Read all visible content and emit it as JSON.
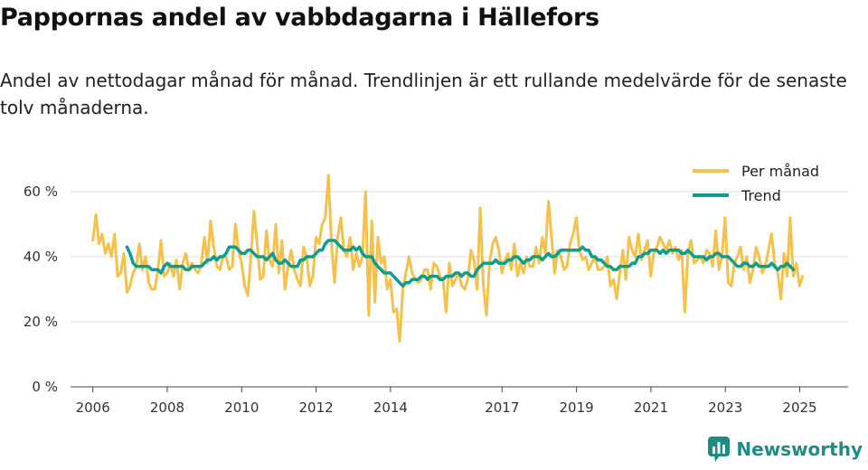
{
  "chart_data": {
    "type": "line",
    "title": "Pappornas andel av vabbdagarna i Hällefors",
    "subtitle": "Andel av nettodagar månad för månad. Trendlinjen är ett rullande medelvärde för de senaste tolv månaderna.",
    "xlabel": "",
    "ylabel": "",
    "xlim": [
      2005.4,
      2026.3
    ],
    "ylim": [
      0,
      70
    ],
    "x_ticks": [
      2006,
      2008,
      2010,
      2012,
      2014,
      2017,
      2019,
      2021,
      2023,
      2025
    ],
    "x_tick_labels": [
      "2006",
      "2008",
      "2010",
      "2012",
      "2014",
      "2017",
      "2019",
      "2021",
      "2023",
      "2025"
    ],
    "y_ticks": [
      0,
      20,
      40,
      60
    ],
    "y_tick_labels": [
      "0 %",
      "20 %",
      "40 %",
      "60 %"
    ],
    "grid": true,
    "legend_position": "top-right",
    "colors": {
      "Per månad": "#f6c14b",
      "Trend": "#0f9e8e"
    },
    "series": [
      {
        "name": "Per månad",
        "x_start": 2006.0,
        "step": 0.0833,
        "values": [
          45,
          53,
          44,
          47,
          41,
          44,
          40,
          47,
          34,
          35,
          41,
          29,
          31,
          35,
          37,
          44,
          36,
          40,
          32,
          30,
          30,
          36,
          45,
          34,
          35,
          38,
          34,
          39,
          30,
          38,
          41,
          36,
          38,
          36,
          35,
          38,
          46,
          38,
          51,
          43,
          37,
          36,
          40,
          40,
          36,
          37,
          50,
          42,
          38,
          31,
          28,
          40,
          54,
          44,
          33,
          34,
          48,
          39,
          37,
          50,
          35,
          45,
          30,
          37,
          42,
          36,
          33,
          31,
          43,
          40,
          31,
          34,
          46,
          44,
          50,
          52,
          65,
          44,
          32,
          46,
          52,
          42,
          40,
          46,
          36,
          41,
          37,
          40,
          60,
          22,
          51,
          26,
          46,
          38,
          40,
          30,
          33,
          23,
          24,
          14,
          30,
          35,
          40,
          35,
          33,
          32,
          33,
          36,
          36,
          30,
          38,
          37,
          34,
          33,
          23,
          38,
          31,
          33,
          35,
          31,
          30,
          33,
          42,
          39,
          30,
          55,
          31,
          22,
          38,
          44,
          46,
          42,
          35,
          39,
          41,
          36,
          44,
          34,
          38,
          35,
          40,
          37,
          37,
          43,
          38,
          46,
          41,
          57,
          46,
          35,
          42,
          40,
          36,
          37,
          44,
          47,
          52,
          42,
          39,
          40,
          36,
          38,
          40,
          36,
          36,
          37,
          40,
          31,
          33,
          27,
          35,
          42,
          33,
          46,
          42,
          40,
          47,
          39,
          42,
          45,
          34,
          41,
          43,
          46,
          44,
          42,
          45,
          41,
          43,
          39,
          42,
          23,
          41,
          45,
          38,
          39,
          40,
          38,
          42,
          41,
          37,
          48,
          36,
          40,
          52,
          32,
          31,
          38,
          40,
          43,
          36,
          40,
          32,
          36,
          43,
          40,
          35,
          37,
          42,
          47,
          38,
          35,
          27,
          41,
          34,
          52,
          34,
          38,
          31,
          34
        ]
      },
      {
        "name": "Trend",
        "x_start": 2006.9167,
        "step": 0.0833,
        "values": [
          43,
          41,
          38,
          37,
          37,
          37,
          37,
          37,
          36,
          36,
          36,
          35,
          37,
          38,
          37,
          37,
          37,
          37,
          37,
          36,
          36,
          37,
          37,
          37,
          37,
          38,
          39,
          39,
          40,
          39,
          40,
          40,
          41,
          43,
          43,
          43,
          42,
          41,
          41,
          42,
          42,
          41,
          40,
          40,
          40,
          39,
          40,
          41,
          39,
          38,
          38,
          39,
          38,
          37,
          37,
          37,
          39,
          39,
          40,
          40,
          40,
          41,
          42,
          42,
          44,
          45,
          45,
          45,
          44,
          43,
          42,
          42,
          42,
          43,
          42,
          43,
          41,
          40,
          40,
          40,
          38,
          37,
          36,
          35,
          35,
          35,
          34,
          33,
          32,
          31,
          32,
          32,
          33,
          33,
          33,
          34,
          34,
          33,
          34,
          34,
          34,
          33,
          33,
          34,
          34,
          34,
          35,
          35,
          34,
          35,
          35,
          34,
          34,
          36,
          37,
          38,
          38,
          38,
          38,
          39,
          38,
          38,
          38,
          39,
          39,
          40,
          40,
          39,
          38,
          39,
          39,
          40,
          40,
          40,
          39,
          40,
          41,
          40,
          40,
          41,
          42,
          42,
          42,
          42,
          42,
          42,
          42,
          43,
          42,
          42,
          40,
          40,
          39,
          39,
          38,
          37,
          37,
          36,
          36,
          37,
          37,
          37,
          37,
          38,
          38,
          40,
          40,
          41,
          41,
          42,
          42,
          42,
          41,
          42,
          41,
          42,
          42,
          42,
          42,
          41,
          41,
          42,
          41,
          40,
          40,
          40,
          40,
          39,
          40,
          40,
          41,
          41,
          40,
          40,
          40,
          39,
          38,
          37,
          37,
          38,
          38,
          37,
          37,
          38,
          37,
          37,
          37,
          37,
          38,
          37,
          36,
          37,
          37,
          38,
          37,
          36
        ]
      }
    ]
  },
  "brand": {
    "name": "Newsworthy"
  }
}
